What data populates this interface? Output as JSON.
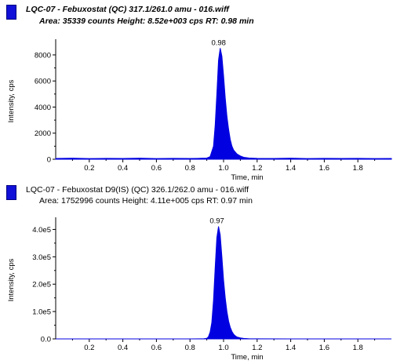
{
  "chart_data": [
    {
      "type": "area",
      "header_line1": "LQC-07 - Febuxostat (QC) 317.1/261.0 amu - 016.wiff",
      "header_line2": "Area: 35339 counts  Height: 8.52e+003 cps  RT: 0.98 min",
      "header_style": "bold-italic",
      "xlabel": "Time, min",
      "ylabel": "Intensity, cps",
      "xlim": [
        0.0,
        2.0
      ],
      "ylim": [
        0,
        8900
      ],
      "x_ticks": [
        0.2,
        0.4,
        0.6,
        0.8,
        1.0,
        1.2,
        1.4,
        1.6,
        1.8
      ],
      "x_tick_labels": [
        "0.2",
        "0.4",
        "0.6",
        "0.8",
        "1.0",
        "1.2",
        "1.4",
        "1.6",
        "1.8"
      ],
      "y_ticks": [
        0,
        2000,
        4000,
        6000,
        8000
      ],
      "y_tick_labels": [
        "0",
        "2000",
        "4000",
        "6000",
        "8000"
      ],
      "peak_label": "0.98",
      "series": [
        {
          "x": [
            0.0,
            0.1,
            0.2,
            0.3,
            0.4,
            0.5,
            0.6,
            0.7,
            0.8,
            0.85,
            0.9,
            0.92,
            0.94,
            0.95,
            0.96,
            0.97,
            0.98,
            0.99,
            1.0,
            1.01,
            1.02,
            1.03,
            1.04,
            1.05,
            1.06,
            1.08,
            1.1,
            1.12,
            1.15,
            1.2,
            1.3,
            1.4,
            1.5,
            1.6,
            1.7,
            1.8,
            1.9,
            2.0
          ],
          "values": [
            60,
            80,
            50,
            70,
            60,
            80,
            55,
            70,
            60,
            70,
            90,
            200,
            1000,
            2600,
            5000,
            7600,
            8520,
            7900,
            6400,
            4700,
            3300,
            2300,
            1500,
            1000,
            700,
            400,
            250,
            150,
            100,
            70,
            60,
            80,
            50,
            70,
            60,
            70,
            50,
            60
          ]
        }
      ],
      "color": "#0000e0"
    },
    {
      "type": "area",
      "header_line1": "LQC-07 - Febuxostat D9(IS) (QC) 326.1/262.0 amu - 016.wiff",
      "header_line2": "Area: 1752996 counts  Height: 4.11e+005 cps  RT: 0.97 min",
      "header_style": "regular",
      "xlabel": "Time, min",
      "ylabel": "Intensity, cps",
      "xlim": [
        0.0,
        2.0
      ],
      "ylim": [
        0,
        430000
      ],
      "x_ticks": [
        0.2,
        0.4,
        0.6,
        0.8,
        1.0,
        1.2,
        1.4,
        1.6,
        1.8
      ],
      "x_tick_labels": [
        "0.2",
        "0.4",
        "0.6",
        "0.8",
        "1.0",
        "1.2",
        "1.4",
        "1.6",
        "1.8"
      ],
      "y_ticks": [
        0,
        100000,
        200000,
        300000,
        400000
      ],
      "y_tick_labels": [
        "0.0",
        "1.0e5",
        "2.0e5",
        "3.0e5",
        "4.0e5"
      ],
      "peak_label": "0.97",
      "series": [
        {
          "x": [
            0.0,
            0.2,
            0.4,
            0.6,
            0.8,
            0.88,
            0.9,
            0.91,
            0.92,
            0.93,
            0.94,
            0.95,
            0.96,
            0.97,
            0.98,
            0.99,
            1.0,
            1.01,
            1.02,
            1.03,
            1.04,
            1.05,
            1.06,
            1.07,
            1.08,
            1.1,
            1.12,
            1.15,
            1.2,
            1.4,
            1.6,
            1.8,
            2.0
          ],
          "values": [
            0,
            0,
            0,
            0,
            0,
            300,
            2000,
            8000,
            25000,
            60000,
            140000,
            260000,
            370000,
            411000,
            380000,
            300000,
            215000,
            150000,
            100000,
            65000,
            42000,
            27000,
            17000,
            11000,
            7000,
            3500,
            1800,
            700,
            200,
            0,
            0,
            0,
            0
          ]
        }
      ],
      "color": "#0000e0"
    }
  ]
}
